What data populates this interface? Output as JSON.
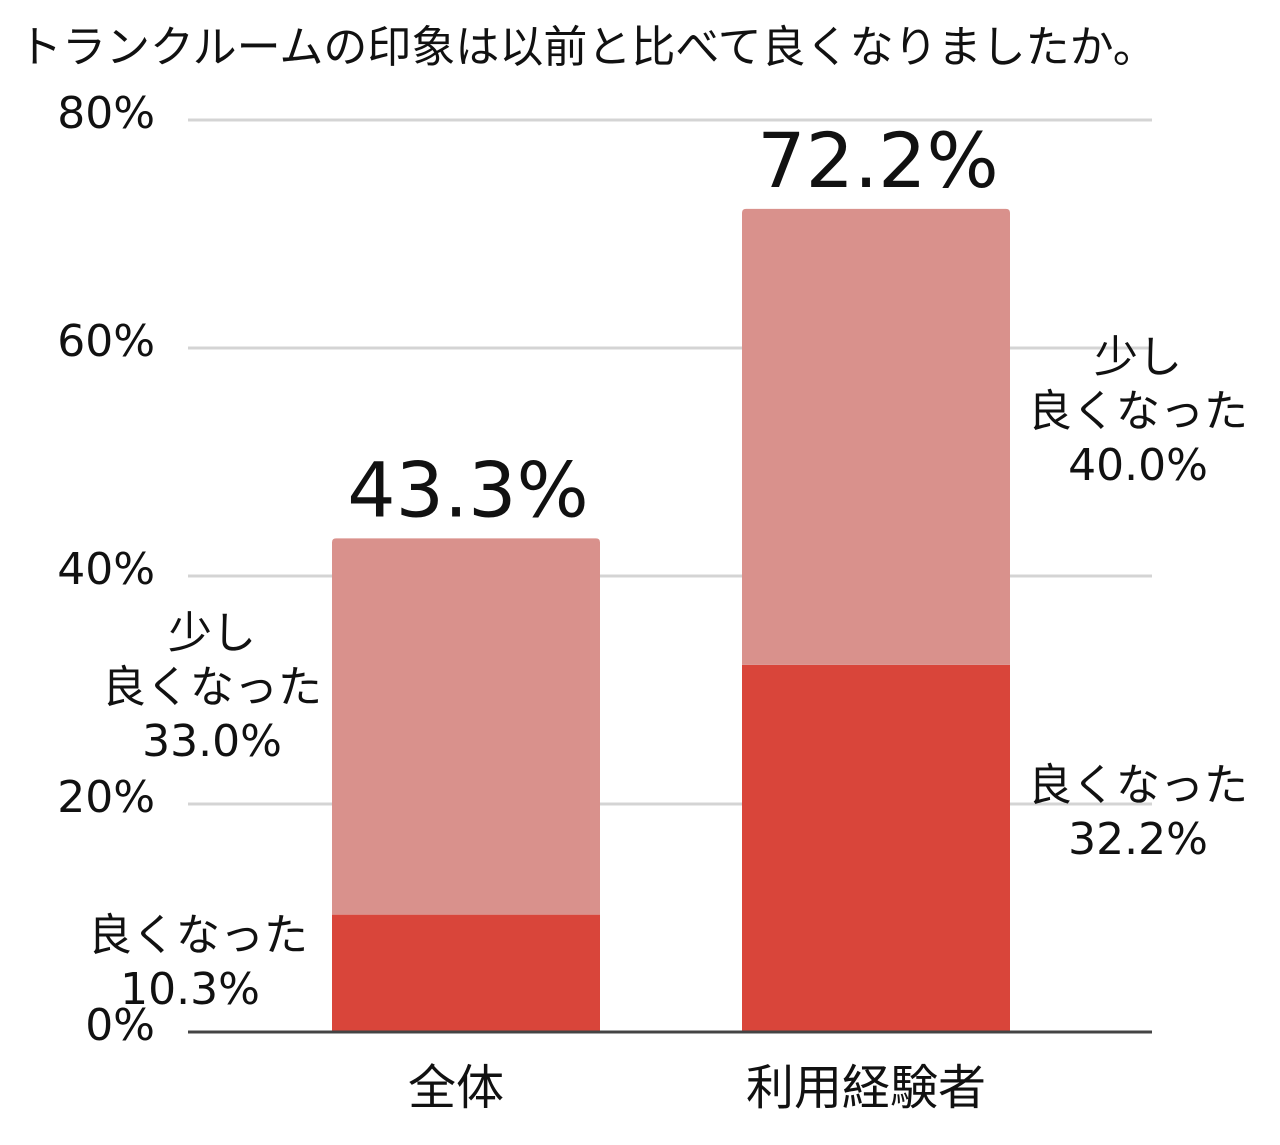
{
  "title": "トランクルームの印象は以前と比べて良くなりましたか。",
  "chart_data": {
    "type": "bar",
    "stacked": true,
    "title": "トランクルームの印象は以前と比べて良くなりましたか。",
    "categories": [
      "全体",
      "利用経験者"
    ],
    "series": [
      {
        "name": "良くなった",
        "values": [
          10.3,
          32.2
        ],
        "color": "#d9453a",
        "labels": [
          [
            "良くなった",
            "10.3%"
          ],
          [
            "良くなった",
            "32.2%"
          ]
        ]
      },
      {
        "name": "少し良くなった",
        "values": [
          33.0,
          40.0
        ],
        "color": "#d9918c",
        "labels": [
          [
            "少し",
            "良くなった",
            "33.0%"
          ],
          [
            "少し",
            "良くなった",
            "40.0%"
          ]
        ]
      }
    ],
    "totals": [
      "43.3%",
      "72.2%"
    ],
    "ylim": [
      0,
      80
    ],
    "yticks": [
      0,
      20,
      40,
      60,
      80
    ],
    "ytick_labels": [
      "0%",
      "20%",
      "40%",
      "60%",
      "80%"
    ],
    "grid": true,
    "xlabel": "",
    "ylabel": ""
  }
}
